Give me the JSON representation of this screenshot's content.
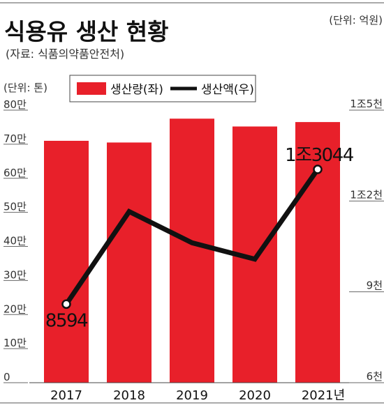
{
  "title": "식용유 생산 현황",
  "source": "(자료: 식품의약품안전처)",
  "left_unit": "(단위: 톤)",
  "right_unit": "(단위: 억원)",
  "legend": {
    "bar_label": "생산량(좌)",
    "line_label": "생산액(우)"
  },
  "colors": {
    "bar": "#e8202a",
    "line": "#111111"
  },
  "chart_data": {
    "type": "bar+line",
    "categories": [
      "2017",
      "2018",
      "2019",
      "2020",
      "2021년"
    ],
    "series": [
      {
        "name": "생산량(좌)",
        "type": "bar",
        "axis": "left",
        "values": [
          710000,
          705000,
          775000,
          752000,
          765000
        ]
      },
      {
        "name": "생산액(우)",
        "type": "line",
        "axis": "right",
        "values": [
          8594,
          11650,
          10620,
          10080,
          13044
        ]
      }
    ],
    "left_axis": {
      "range": [
        0,
        800000
      ],
      "ticks": [
        {
          "value": 0,
          "label": "0"
        },
        {
          "value": 100000,
          "label": "10만"
        },
        {
          "value": 200000,
          "label": "20만"
        },
        {
          "value": 300000,
          "label": "30만"
        },
        {
          "value": 400000,
          "label": "40만"
        },
        {
          "value": 500000,
          "label": "50만"
        },
        {
          "value": 600000,
          "label": "60만"
        },
        {
          "value": 700000,
          "label": "70만"
        },
        {
          "value": 800000,
          "label": "80만"
        }
      ]
    },
    "right_axis": {
      "range": [
        6000,
        15000
      ],
      "ticks": [
        {
          "value": 6000,
          "label": "6천"
        },
        {
          "value": 9000,
          "label": "9천"
        },
        {
          "value": 12000,
          "label": "1조2천"
        },
        {
          "value": 15000,
          "label": "1조5천"
        }
      ]
    },
    "annotations": [
      {
        "series": 1,
        "index": 0,
        "text": "8594"
      },
      {
        "series": 1,
        "index": 4,
        "text": "1조3044"
      }
    ],
    "grid": false,
    "legend_position": "top-center"
  }
}
